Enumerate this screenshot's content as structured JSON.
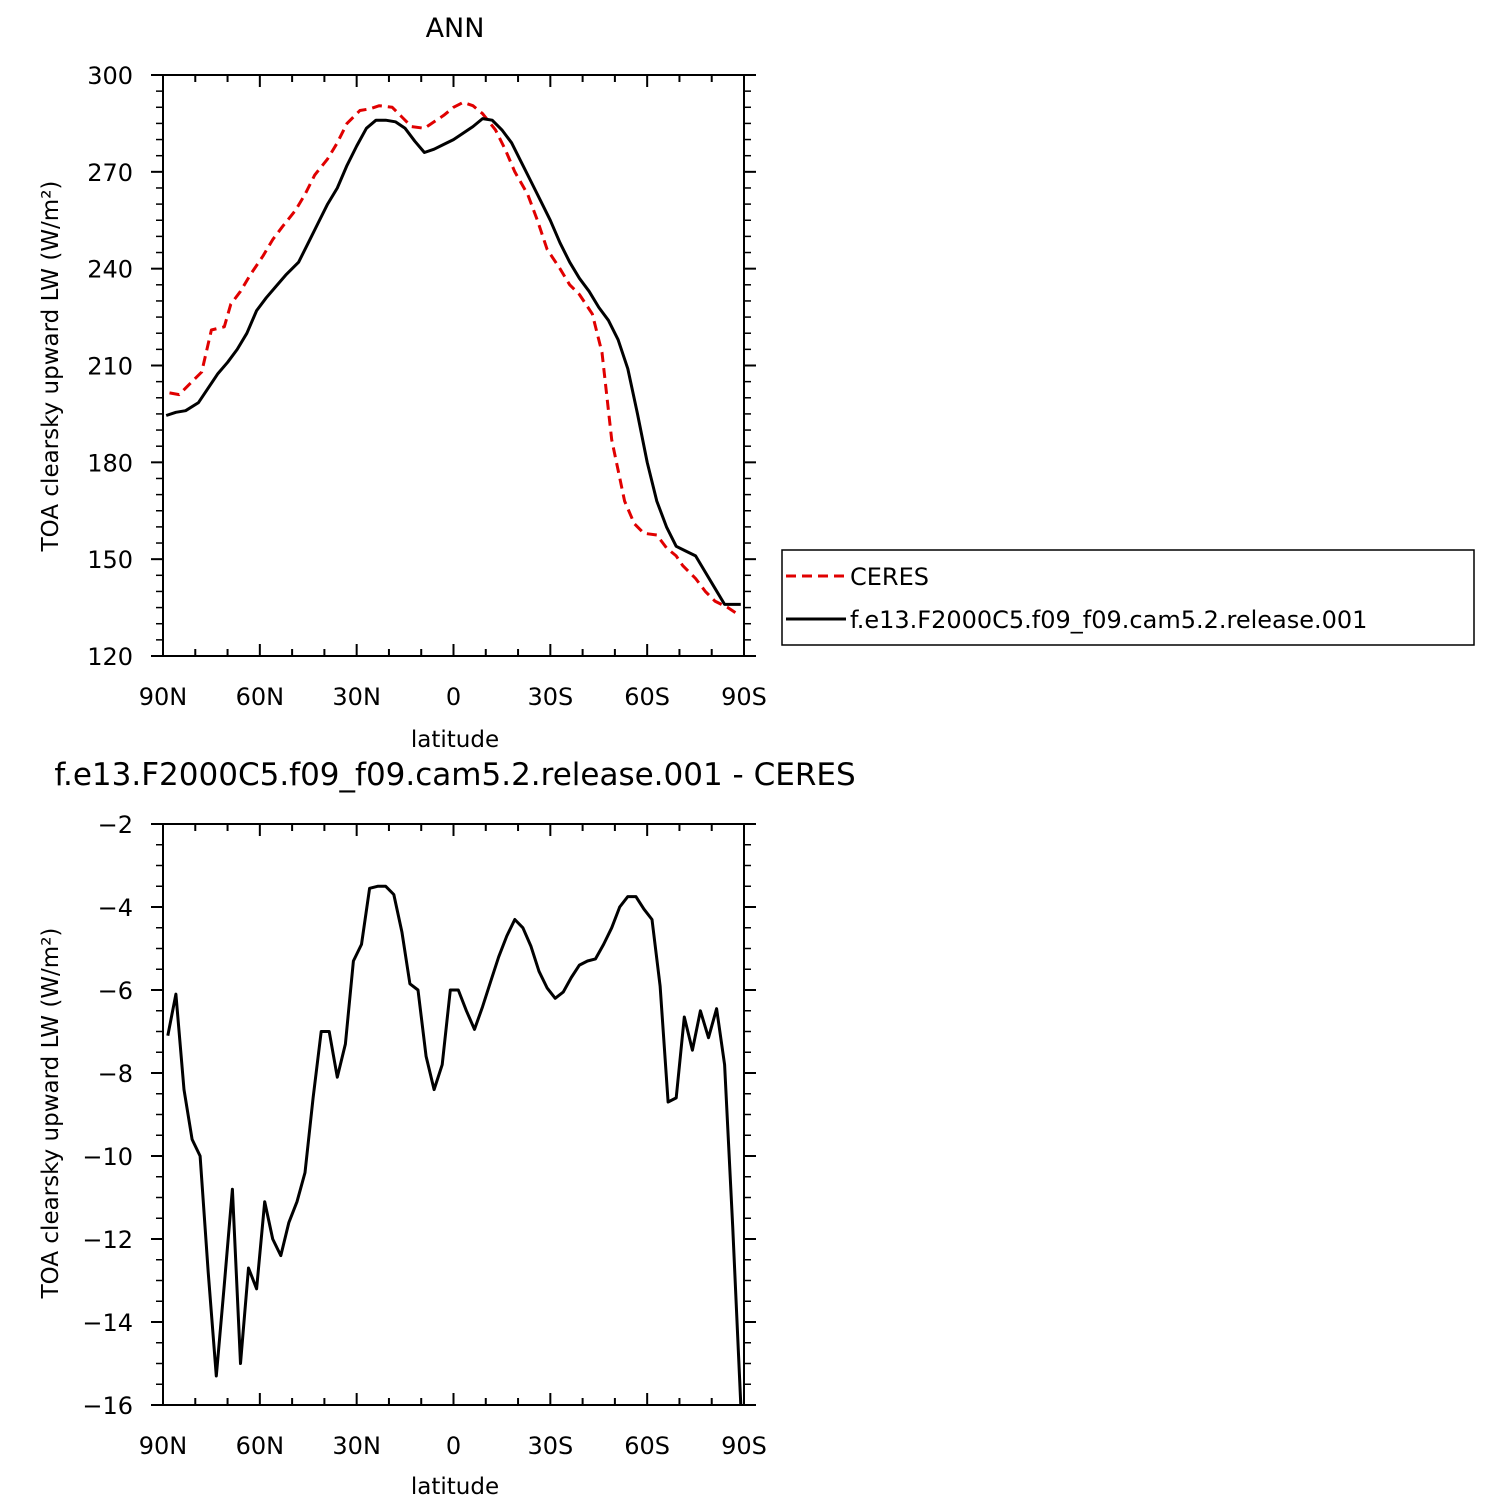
{
  "chart_data": [
    {
      "type": "line",
      "title": "ANN",
      "xlabel": "latitude",
      "ylabel": "TOA clearsky upward LW (W/m²)",
      "x_ticks": [
        {
          "value": 90,
          "label": "90N"
        },
        {
          "value": 60,
          "label": "60N"
        },
        {
          "value": 30,
          "label": "30N"
        },
        {
          "value": 0,
          "label": "0"
        },
        {
          "value": -30,
          "label": "30S"
        },
        {
          "value": -60,
          "label": "60S"
        },
        {
          "value": -90,
          "label": "90S"
        }
      ],
      "xlim": [
        90,
        -90
      ],
      "ylim": [
        120,
        300
      ],
      "y_ticks": [
        120,
        150,
        180,
        210,
        240,
        270,
        300
      ],
      "grid": false,
      "legend_position": "right",
      "series": [
        {
          "name": "CERES",
          "color": "#e00000",
          "dash": "dashed",
          "x": [
            88,
            85,
            81,
            78,
            75,
            71,
            69,
            66,
            63,
            59,
            56,
            53,
            49,
            46,
            43,
            39,
            36,
            33,
            29,
            26,
            23,
            19,
            16,
            13,
            9,
            6,
            3,
            0,
            -3,
            -6,
            -9,
            -13,
            -16,
            -19,
            -23,
            -26,
            -29,
            -33,
            -36,
            -39,
            -43,
            -46,
            -49,
            -53,
            -56,
            -59,
            -63,
            -66,
            -69,
            -71,
            -75,
            -78,
            -81,
            -85,
            -88
          ],
          "y": [
            201.5,
            201,
            205,
            208,
            221,
            222,
            229,
            233,
            238,
            244,
            249,
            253,
            258,
            263,
            269,
            274,
            279,
            285,
            289,
            289.5,
            290.5,
            290,
            287,
            284,
            283.5,
            285.5,
            287.5,
            290,
            291.5,
            290.5,
            288,
            283,
            277,
            270,
            263,
            255,
            246,
            240,
            235,
            232,
            226,
            214,
            187,
            168,
            161,
            158,
            157.5,
            153.5,
            151,
            148,
            144,
            140,
            137,
            135,
            133
          ]
        },
        {
          "name": "f.e13.F2000C5.f09_f09.cam5.2.release.001",
          "color": "#000000",
          "dash": "solid",
          "x": [
            89,
            86,
            83,
            79,
            76,
            73,
            70,
            67,
            64,
            61,
            58,
            55,
            52,
            48,
            45,
            42,
            39,
            36,
            33,
            30,
            27,
            24,
            21,
            18,
            15,
            12,
            9,
            6,
            3,
            0,
            -3,
            -6,
            -9,
            -12,
            -15,
            -18,
            -21,
            -24,
            -27,
            -30,
            -33,
            -36,
            -39,
            -42,
            -45,
            -48,
            -51,
            -54,
            -57,
            -60,
            -63,
            -66,
            -69,
            -72,
            -75,
            -78,
            -81,
            -84,
            -87,
            -89
          ],
          "y": [
            194.5,
            195.5,
            196,
            198.5,
            203,
            207.5,
            211,
            215,
            220,
            227,
            231,
            234.5,
            238,
            242,
            248,
            254,
            260,
            265,
            272,
            278,
            283.5,
            286,
            286,
            285.5,
            283.5,
            279.5,
            276,
            277,
            278.5,
            280,
            282,
            284,
            286.5,
            286,
            283,
            279,
            273,
            267,
            261,
            255,
            248,
            242,
            237,
            233,
            228,
            224,
            218,
            209,
            195,
            180,
            168,
            160,
            154,
            152.5,
            151,
            146,
            141,
            136,
            136,
            136
          ]
        }
      ]
    },
    {
      "type": "line",
      "title": "f.e13.F2000C5.f09_f09.cam5.2.release.001 - CERES",
      "xlabel": "latitude",
      "ylabel": "TOA clearsky upward LW (W/m²)",
      "x_ticks": [
        {
          "value": 90,
          "label": "90N"
        },
        {
          "value": 60,
          "label": "60N"
        },
        {
          "value": 30,
          "label": "30N"
        },
        {
          "value": 0,
          "label": "0"
        },
        {
          "value": -30,
          "label": "30S"
        },
        {
          "value": -60,
          "label": "60S"
        },
        {
          "value": -90,
          "label": "90S"
        }
      ],
      "xlim": [
        90,
        -90
      ],
      "ylim": [
        -16,
        -2
      ],
      "y_ticks": [
        -16,
        -14,
        -12,
        -10,
        -8,
        -6,
        -4,
        -2
      ],
      "grid": false,
      "series": [
        {
          "name": "",
          "color": "#000000",
          "dash": "solid",
          "x": [
            88.5,
            86,
            83.5,
            81,
            78.5,
            76,
            73.5,
            71,
            68.5,
            66,
            63.5,
            61,
            58.5,
            56,
            53.5,
            51,
            48.5,
            46,
            43.5,
            41,
            38.5,
            36,
            33.5,
            31,
            28.5,
            26,
            23.5,
            21,
            18.5,
            16,
            13.5,
            11,
            8.5,
            6,
            3.5,
            1,
            -1.5,
            -4,
            -6.5,
            -9,
            -11.5,
            -14,
            -16.5,
            -19,
            -21.5,
            -24,
            -26.5,
            -29,
            -31.5,
            -34,
            -36.5,
            -39,
            -41.5,
            -44,
            -46.5,
            -49,
            -51.5,
            -54,
            -56.5,
            -59,
            -61.5,
            -64,
            -66.5,
            -69,
            -71.5,
            -74,
            -76.5,
            -79,
            -81.5,
            -84,
            -86.5,
            -89
          ],
          "y": [
            -7.1,
            -6.1,
            -8.4,
            -9.6,
            -10,
            -12.8,
            -15.3,
            -13.1,
            -10.8,
            -15,
            -12.7,
            -13.2,
            -11.1,
            -12,
            -12.4,
            -11.6,
            -11.1,
            -10.4,
            -8.6,
            -7,
            -7,
            -8.1,
            -7.3,
            -5.3,
            -4.9,
            -3.55,
            -3.5,
            -3.5,
            -3.7,
            -4.6,
            -5.85,
            -6,
            -7.6,
            -8.4,
            -7.8,
            -6,
            -6,
            -6.5,
            -6.95,
            -6.4,
            -5.8,
            -5.2,
            -4.7,
            -4.3,
            -4.5,
            -4.95,
            -5.55,
            -5.95,
            -6.2,
            -6.05,
            -5.7,
            -5.4,
            -5.3,
            -5.25,
            -4.9,
            -4.5,
            -4,
            -3.75,
            -3.75,
            -4.05,
            -4.3,
            -5.9,
            -8.7,
            -8.6,
            -6.65,
            -7.45,
            -6.5,
            -7.15,
            -6.45,
            -7.8,
            -11.7,
            -16
          ]
        }
      ]
    }
  ]
}
